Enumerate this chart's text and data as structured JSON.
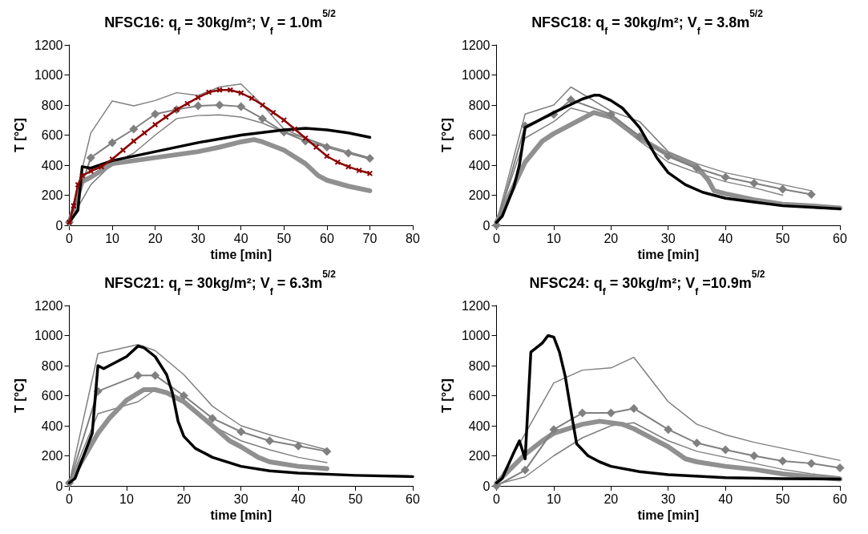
{
  "chart_data": [
    {
      "type": "line",
      "title": "NFSC16: q$_{f}$ = 30kg/m²; V$_{f}$ = 1.0m$^{5/2}$",
      "xlabel": "time [min]",
      "ylabel": "T [°C]",
      "xlim": [
        0,
        80
      ],
      "xticks": [
        0,
        10,
        20,
        30,
        40,
        50,
        60,
        70,
        80
      ],
      "ylim": [
        0,
        1200
      ],
      "yticks": [
        0,
        200,
        400,
        600,
        800,
        1000,
        1200
      ],
      "grid": false,
      "series": [
        {
          "color": "#808080",
          "marker": "none",
          "x": [
            0,
            5,
            10,
            15,
            20,
            25,
            30,
            35,
            40,
            45,
            50,
            55,
            60,
            65,
            70
          ],
          "values": [
            20,
            614,
            827,
            795,
            830,
            882,
            864,
            920,
            940,
            800,
            640,
            580,
            530,
            490,
            450
          ]
        },
        {
          "color": "#808080",
          "marker": "none",
          "x": [
            0,
            5,
            10,
            15,
            20,
            25,
            30,
            35,
            40,
            45,
            50,
            55,
            60,
            65,
            70
          ],
          "values": [
            20,
            270,
            410,
            480,
            600,
            710,
            730,
            735,
            720,
            680,
            620,
            580,
            520,
            480,
            440
          ]
        },
        {
          "color": "#909090",
          "marker": "none",
          "x": [
            0,
            3,
            5,
            10,
            20,
            30,
            35,
            40,
            43,
            45,
            50,
            55,
            58,
            60,
            65,
            70
          ],
          "values": [
            20,
            290,
            320,
            410,
            450,
            490,
            520,
            555,
            570,
            555,
            500,
            410,
            330,
            300,
            260,
            230
          ]
        },
        {
          "color": "#808080",
          "marker": "diamond",
          "x": [
            0,
            5,
            10,
            15,
            20,
            25,
            30,
            35,
            40,
            45,
            50,
            55,
            60,
            65,
            70
          ],
          "values": [
            20,
            450,
            550,
            640,
            740,
            770,
            795,
            800,
            790,
            710,
            620,
            560,
            520,
            480,
            445
          ]
        },
        {
          "color": "#000000",
          "marker": "none",
          "x": [
            0,
            2,
            3,
            5,
            10,
            20,
            30,
            40,
            50,
            55,
            60,
            65,
            70
          ],
          "values": [
            20,
            100,
            390,
            380,
            430,
            490,
            550,
            600,
            635,
            645,
            635,
            615,
            585
          ]
        },
        {
          "color": "#8b0000",
          "marker": "cross",
          "x": [
            0,
            1,
            2,
            3,
            5,
            7.5,
            10,
            12.5,
            15,
            17.5,
            20,
            22.5,
            25,
            27.5,
            30,
            32.5,
            35,
            37.5,
            40,
            42.5,
            45,
            47.5,
            50,
            52.5,
            55,
            57.5,
            60,
            62.5,
            65,
            67.5,
            70
          ],
          "values": [
            20,
            130,
            270,
            330,
            360,
            390,
            440,
            500,
            560,
            615,
            670,
            720,
            770,
            810,
            850,
            885,
            900,
            900,
            880,
            845,
            800,
            750,
            700,
            640,
            580,
            520,
            460,
            420,
            390,
            365,
            345
          ]
        }
      ]
    },
    {
      "type": "line",
      "title": "NFSC18: q$_{f}$ = 30kg/m²; V$_{f}$ = 3.8m$^{5/2}$",
      "xlabel": "time [min]",
      "ylabel": "T [°C]",
      "xlim": [
        0,
        60
      ],
      "xticks": [
        0,
        10,
        20,
        30,
        40,
        50,
        60
      ],
      "ylim": [
        0,
        1200
      ],
      "yticks": [
        0,
        200,
        400,
        600,
        800,
        1000,
        1200
      ],
      "grid": false,
      "series": [
        {
          "color": "#808080",
          "marker": "none",
          "x": [
            0,
            5,
            10,
            13,
            20,
            25,
            30,
            35,
            40,
            45,
            50,
            55
          ],
          "values": [
            20,
            740,
            800,
            920,
            760,
            690,
            490,
            410,
            350,
            310,
            270,
            230
          ]
        },
        {
          "color": "#808080",
          "marker": "none",
          "x": [
            0,
            5,
            10,
            13,
            20,
            25,
            30,
            35,
            40,
            45,
            50
          ],
          "values": [
            20,
            580,
            690,
            780,
            710,
            560,
            420,
            350,
            290,
            250,
            200
          ]
        },
        {
          "color": "#909090",
          "marker": "none",
          "x": [
            0,
            5,
            8,
            10,
            13,
            17,
            20,
            25,
            30,
            35,
            37,
            38,
            40,
            45,
            50,
            55,
            60
          ],
          "values": [
            20,
            420,
            560,
            610,
            670,
            750,
            720,
            580,
            470,
            390,
            300,
            230,
            210,
            170,
            140,
            130,
            115
          ]
        },
        {
          "color": "#808080",
          "marker": "diamond",
          "x": [
            0,
            5,
            10,
            13,
            20,
            25,
            30,
            35,
            40,
            45,
            50,
            55
          ],
          "values": [
            0,
            662,
            738,
            835,
            738,
            590,
            460,
            380,
            320,
            280,
            240,
            205
          ]
        },
        {
          "color": "#000000",
          "marker": "none",
          "x": [
            0,
            1,
            3,
            4,
            5,
            10,
            15,
            17,
            18,
            20,
            22,
            25,
            28,
            30,
            33,
            36,
            40,
            45,
            50,
            55,
            60
          ],
          "values": [
            20,
            60,
            250,
            400,
            650,
            750,
            840,
            865,
            865,
            830,
            780,
            650,
            450,
            350,
            270,
            220,
            180,
            155,
            130,
            120,
            110
          ]
        }
      ]
    },
    {
      "type": "line",
      "title": "NFSC21: q$_{f}$ = 30kg/m²; V$_{f}$ = 6.3m$^{5/2}$",
      "xlabel": "time [min]",
      "ylabel": "T [°C]",
      "xlim": [
        0,
        60
      ],
      "xticks": [
        0,
        10,
        20,
        30,
        40,
        50,
        60
      ],
      "ylim": [
        0,
        1200
      ],
      "yticks": [
        0,
        200,
        400,
        600,
        800,
        1000,
        1200
      ],
      "grid": false,
      "series": [
        {
          "color": "#808080",
          "marker": "none",
          "x": [
            0,
            5,
            12,
            15,
            20,
            25,
            30,
            35,
            40,
            45
          ],
          "values": [
            20,
            880,
            940,
            900,
            740,
            530,
            400,
            340,
            290,
            240
          ]
        },
        {
          "color": "#808080",
          "marker": "none",
          "x": [
            0,
            5,
            12,
            15,
            20,
            25,
            30,
            35,
            40,
            45
          ],
          "values": [
            20,
            480,
            560,
            640,
            570,
            400,
            300,
            240,
            190,
            155
          ]
        },
        {
          "color": "#909090",
          "marker": "none",
          "x": [
            0,
            5,
            7,
            10,
            13,
            15,
            17,
            20,
            25,
            28,
            30,
            33,
            35,
            40,
            45
          ],
          "values": [
            20,
            350,
            450,
            570,
            640,
            640,
            620,
            560,
            400,
            300,
            260,
            190,
            160,
            130,
            115
          ]
        },
        {
          "color": "#808080",
          "marker": "diamond",
          "x": [
            0,
            5,
            12,
            15,
            20,
            25,
            30,
            35,
            40,
            45
          ],
          "values": [
            20,
            630,
            735,
            735,
            600,
            450,
            360,
            300,
            265,
            230
          ]
        },
        {
          "color": "#000000",
          "marker": "none",
          "x": [
            0,
            1,
            4,
            5,
            6,
            10,
            12,
            13,
            15,
            17,
            18,
            19,
            20,
            22,
            25,
            30,
            35,
            40,
            50,
            60
          ],
          "values": [
            20,
            50,
            350,
            800,
            780,
            860,
            930,
            920,
            860,
            740,
            620,
            430,
            330,
            250,
            190,
            130,
            100,
            85,
            70,
            62
          ]
        }
      ]
    },
    {
      "type": "line",
      "title": "NFSC24: q$_{f}$ = 30kg/m²; V$_{f}$ =10.9m$^{5/2}$",
      "xlabel": "time [min]",
      "ylabel": "T [°C]",
      "xlim": [
        0,
        60
      ],
      "xticks": [
        0,
        10,
        20,
        30,
        40,
        50,
        60
      ],
      "ylim": [
        0,
        1200
      ],
      "yticks": [
        0,
        200,
        400,
        600,
        800,
        1000,
        1200
      ],
      "grid": false,
      "series": [
        {
          "color": "#808080",
          "marker": "none",
          "x": [
            0,
            10,
            15,
            20,
            24,
            30,
            35,
            40,
            45,
            50,
            55,
            60
          ],
          "values": [
            10,
            685,
            770,
            785,
            855,
            560,
            410,
            340,
            290,
            250,
            210,
            170
          ]
        },
        {
          "color": "#808080",
          "marker": "none",
          "x": [
            0,
            5,
            10,
            15,
            20,
            24,
            30,
            35,
            40,
            45,
            50,
            55,
            60
          ],
          "values": [
            10,
            60,
            200,
            320,
            400,
            420,
            300,
            230,
            190,
            150,
            110,
            80,
            60
          ]
        },
        {
          "color": "#909090",
          "marker": "none",
          "x": [
            0,
            5,
            8,
            10,
            15,
            18,
            22,
            24,
            30,
            33,
            35,
            40,
            45,
            50,
            55,
            60
          ],
          "values": [
            20,
            210,
            300,
            350,
            410,
            430,
            410,
            380,
            260,
            180,
            160,
            130,
            110,
            80,
            60,
            45
          ]
        },
        {
          "color": "#808080",
          "marker": "diamond",
          "x": [
            0,
            5,
            10,
            15,
            20,
            24,
            30,
            35,
            40,
            45,
            50,
            55,
            60
          ],
          "values": [
            0,
            105,
            375,
            485,
            485,
            515,
            375,
            285,
            240,
            200,
            165,
            150,
            120
          ]
        },
        {
          "color": "#000000",
          "marker": "none",
          "x": [
            0,
            1,
            3,
            4,
            5,
            6,
            8,
            9,
            10,
            11,
            12,
            13,
            14,
            16,
            18,
            20,
            25,
            30,
            40,
            50,
            60
          ],
          "values": [
            20,
            50,
            220,
            300,
            180,
            890,
            950,
            1000,
            990,
            890,
            730,
            500,
            280,
            200,
            160,
            130,
            95,
            75,
            55,
            48,
            45
          ]
        }
      ]
    }
  ]
}
